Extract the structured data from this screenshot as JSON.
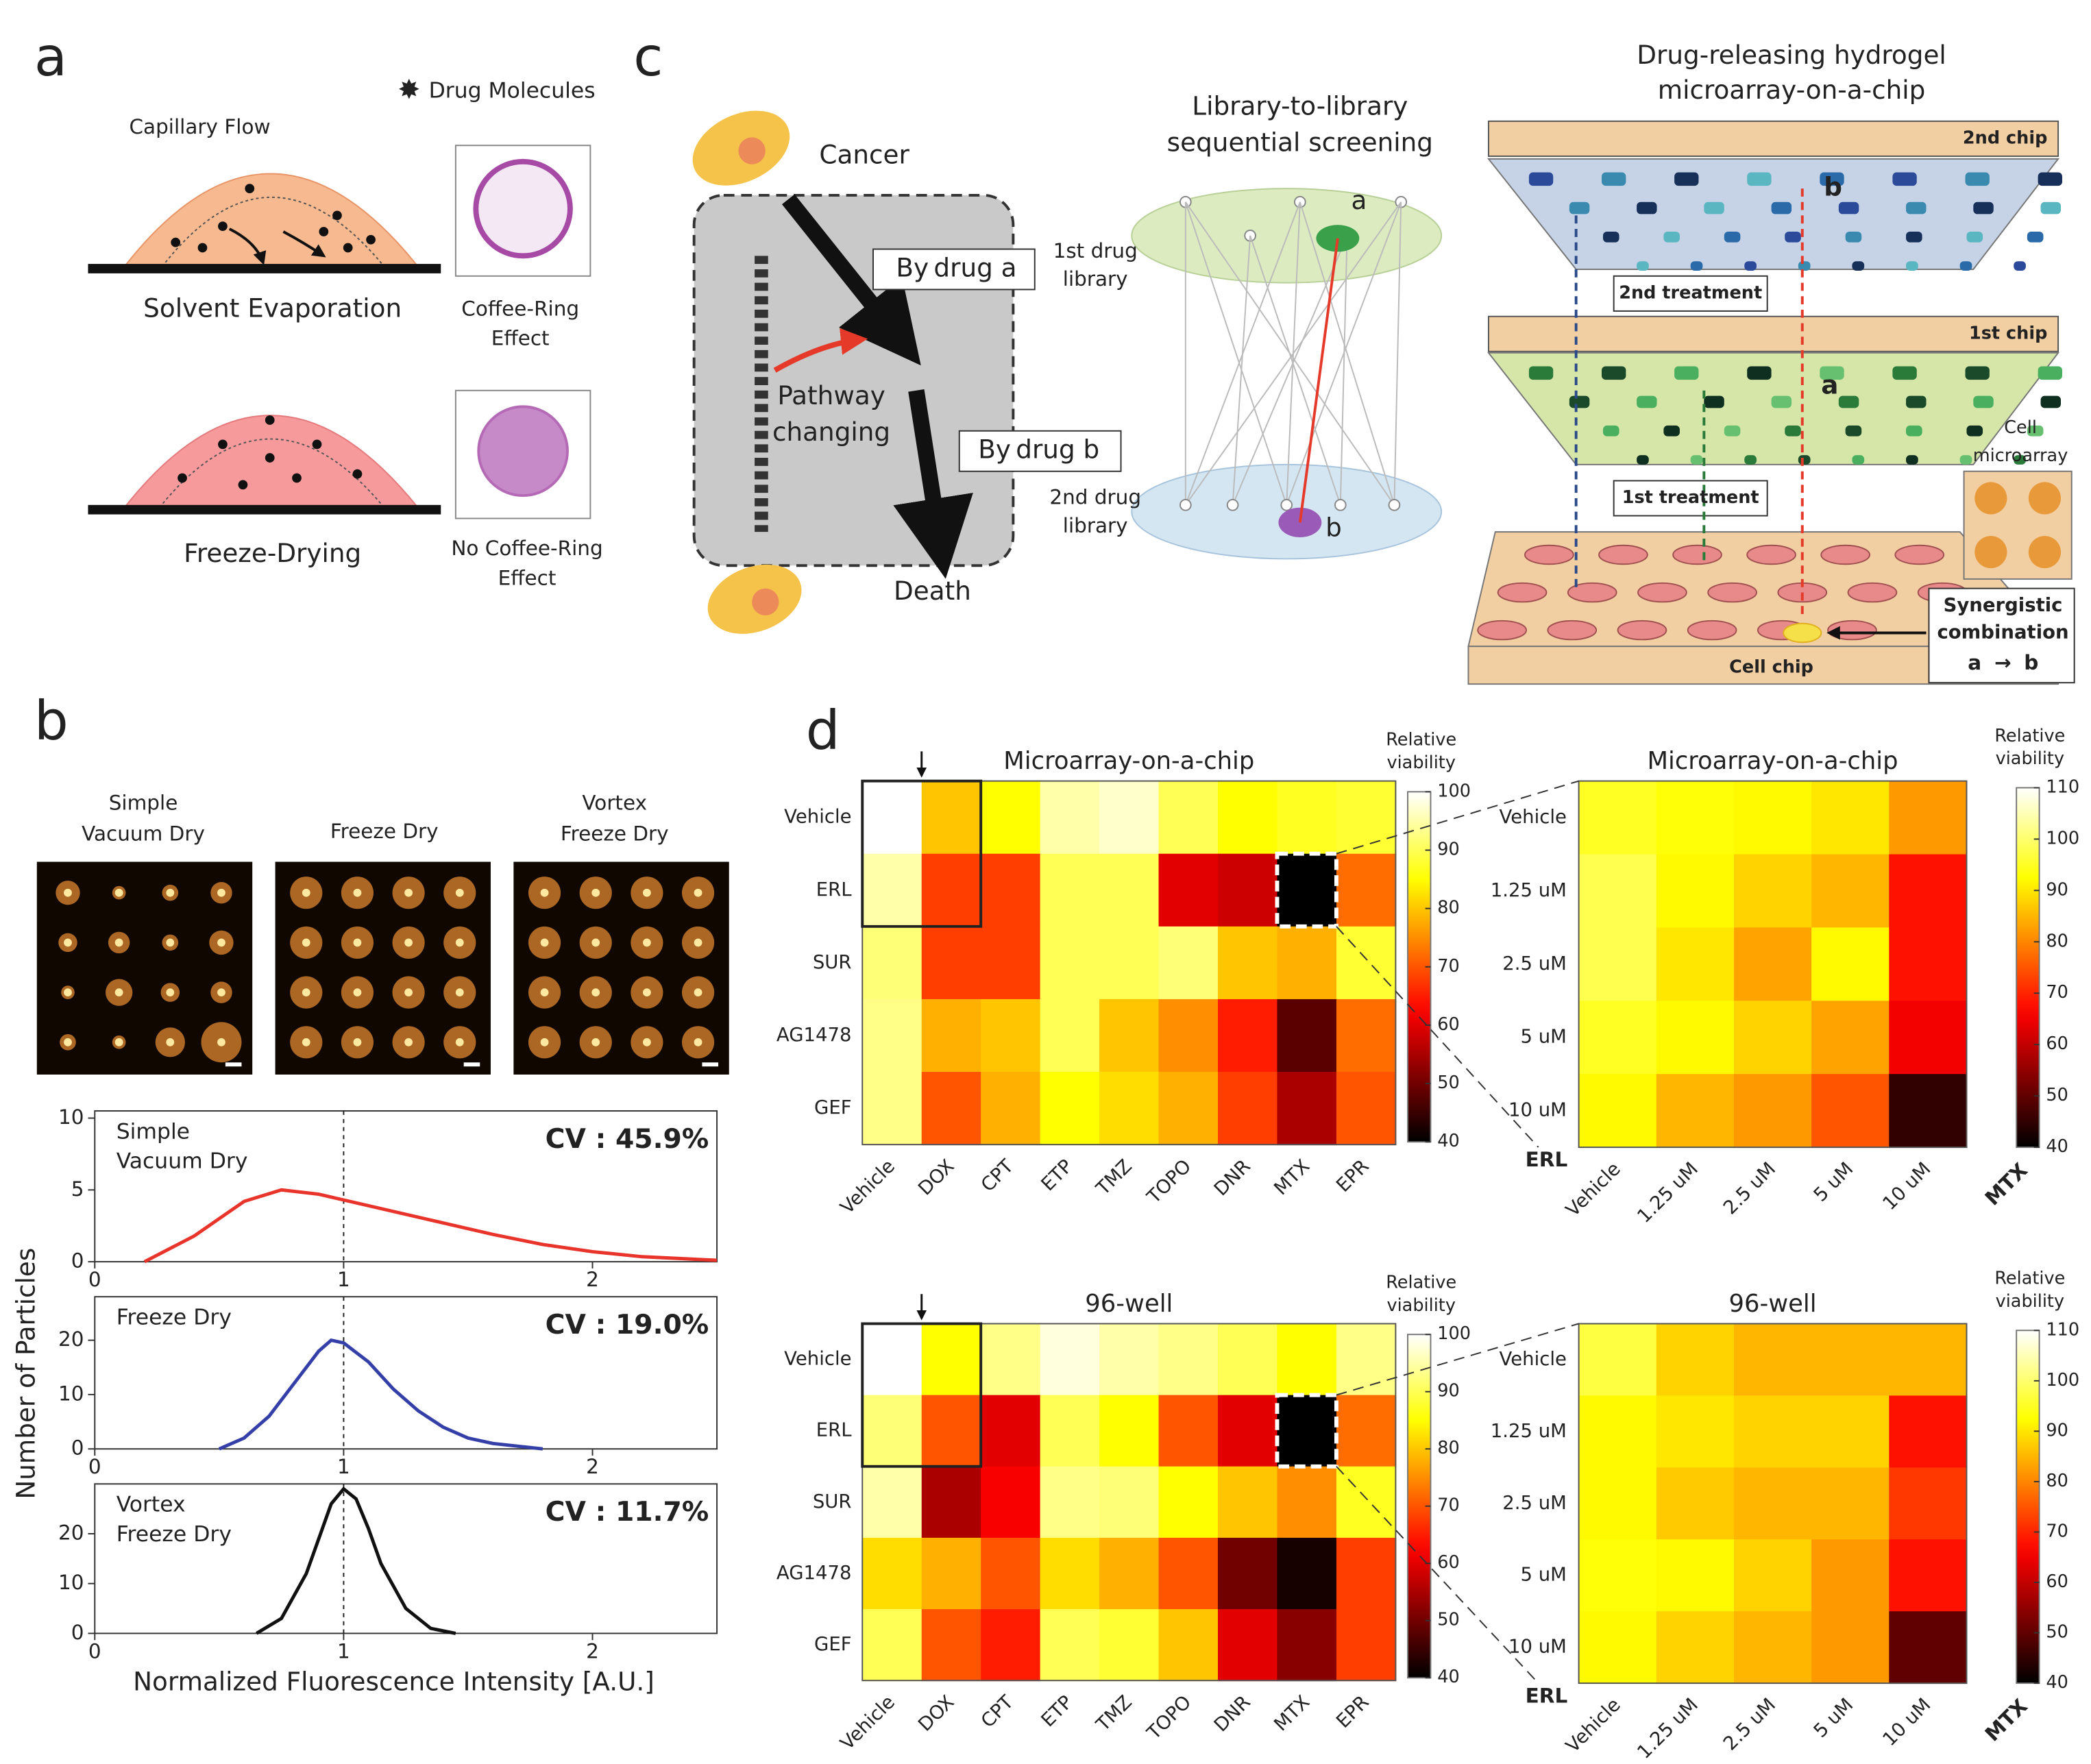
{
  "panel_labels": [
    "a",
    "b",
    "c",
    "d"
  ],
  "panel_a": {
    "legend": "Drug Molecules",
    "capillary": "Capillary Flow",
    "top_caption": "Solvent Evaporation",
    "top_inset_lines": [
      "Coffee-Ring",
      "Effect"
    ],
    "bottom_caption": "Freeze-Drying",
    "bottom_inset_lines": [
      "No Coffee-Ring",
      "Effect"
    ]
  },
  "panel_b": {
    "image_labels": [
      [
        "Simple",
        "Vacuum Dry"
      ],
      [
        "Freeze Dry"
      ],
      [
        "Vortex",
        "Freeze Dry"
      ]
    ],
    "ylabel": "Number of Particles",
    "xlabel": "Normalized Fluorescence Intensity [A.U.]"
  },
  "panel_c": {
    "cancer": "Cancer",
    "by_a": [
      "By",
      "drug a"
    ],
    "pathway_lines": [
      "Pathway",
      "changing"
    ],
    "by_b": [
      "By",
      "drug b"
    ],
    "death": "Death",
    "lib1_lines": [
      "1st drug",
      "library"
    ],
    "lib2_lines": [
      "2nd drug",
      "library"
    ],
    "screen_title_lines": [
      "Library-to-library",
      "sequential screening"
    ],
    "node_a": "a",
    "node_b": "b",
    "chip_title_lines": [
      "Drug-releasing hydrogel",
      "microarray-on-a-chip"
    ],
    "chip2": "2nd chip",
    "treat2": "2nd treatment",
    "chip1": "1st chip",
    "treat1": "1st treatment",
    "cell_chip": "Cell chip",
    "cell_micro_lines": [
      "Cell",
      "microarray"
    ],
    "synergy_lines": [
      "Synergistic",
      "combination"
    ],
    "synergy_seq": [
      "a",
      "→",
      "b"
    ],
    "chip_a": "a",
    "chip_b": "b"
  },
  "chart_data": [
    {
      "type": "line",
      "title_lines": [
        "Simple",
        "Vacuum Dry"
      ],
      "annotation": "CV : 45.9%",
      "x": [
        0.2,
        0.4,
        0.6,
        0.75,
        0.9,
        1.0,
        1.2,
        1.4,
        1.6,
        1.8,
        2.0,
        2.2,
        2.5
      ],
      "series": [
        {
          "color": "#e8342a",
          "values": [
            0,
            1.8,
            4.2,
            5,
            4.7,
            4.3,
            3.5,
            2.7,
            1.9,
            1.2,
            0.7,
            0.35,
            0.1
          ]
        }
      ],
      "xlim": [
        0,
        2.5
      ],
      "xticks": [
        0,
        1,
        2
      ],
      "ylim": [
        0,
        10.5
      ],
      "yticks": [
        0,
        5,
        10
      ],
      "reference_x": 1
    },
    {
      "type": "line",
      "title_lines": [
        "Freeze Dry"
      ],
      "annotation": "CV : 19.0%",
      "x": [
        0.5,
        0.6,
        0.7,
        0.8,
        0.9,
        0.95,
        1.0,
        1.1,
        1.2,
        1.3,
        1.4,
        1.5,
        1.6,
        1.8
      ],
      "series": [
        {
          "color": "#3440a8",
          "values": [
            0,
            2,
            6,
            12,
            18,
            20,
            19.5,
            16,
            11,
            7,
            4,
            2,
            1,
            0
          ]
        }
      ],
      "xlim": [
        0,
        2.5
      ],
      "xticks": [
        0,
        1,
        2
      ],
      "ylim": [
        0,
        28
      ],
      "yticks": [
        0,
        10,
        20
      ],
      "reference_x": 1
    },
    {
      "type": "line",
      "title_lines": [
        "Vortex",
        "Freeze Dry"
      ],
      "annotation": "CV : 11.7%",
      "x": [
        0.65,
        0.75,
        0.85,
        0.9,
        0.95,
        1.0,
        1.05,
        1.1,
        1.15,
        1.25,
        1.35,
        1.45
      ],
      "series": [
        {
          "color": "#111111",
          "values": [
            0,
            3,
            12,
            19,
            26,
            29,
            27,
            21,
            14,
            5,
            1,
            0
          ]
        }
      ],
      "xlim": [
        0,
        2.5
      ],
      "xticks": [
        0,
        1,
        2
      ],
      "ylim": [
        0,
        30
      ],
      "yticks": [
        0,
        10,
        20
      ],
      "reference_x": 1
    },
    {
      "type": "heatmap",
      "title": "Microarray-on-a-chip",
      "rows": [
        "Vehicle",
        "ERL",
        "SUR",
        "AG1478",
        "GEF"
      ],
      "columns": [
        "Vehicle",
        "DOX",
        "CPT",
        "ETP",
        "TMZ",
        "TOPO",
        "DNR",
        "MTX",
        "EPR"
      ],
      "values": [
        [
          100,
          80,
          85,
          95,
          97,
          90,
          85,
          87,
          88
        ],
        [
          95,
          68,
          68,
          90,
          90,
          60,
          58,
          40,
          72
        ],
        [
          92,
          68,
          68,
          90,
          90,
          92,
          80,
          78,
          88
        ],
        [
          93,
          78,
          80,
          90,
          80,
          75,
          65,
          48,
          72
        ],
        [
          93,
          70,
          78,
          85,
          82,
          78,
          68,
          55,
          70
        ]
      ],
      "zlim": [
        40,
        100
      ],
      "zticks": [
        40,
        50,
        60,
        70,
        80,
        90,
        100
      ],
      "colormap": "hot",
      "colorbar_label_lines": [
        "Relative",
        "viability"
      ]
    },
    {
      "type": "heatmap",
      "title": "Microarray-on-a-chip",
      "rows": [
        "Vehicle",
        "1.25 uM",
        "2.5 uM",
        "5 uM",
        "10 uM"
      ],
      "columns": [
        "Vehicle",
        "1.25 uM",
        "2.5 uM",
        "5 uM",
        "10 uM"
      ],
      "values": [
        [
          95,
          93,
          92,
          90,
          82
        ],
        [
          98,
          92,
          88,
          85,
          68
        ],
        [
          98,
          90,
          83,
          92,
          68
        ],
        [
          95,
          92,
          88,
          83,
          65
        ],
        [
          92,
          85,
          82,
          75,
          45
        ]
      ],
      "zlim": [
        40,
        110
      ],
      "zticks": [
        40,
        50,
        60,
        70,
        80,
        90,
        100,
        110
      ],
      "colormap": "hot",
      "colorbar_label_lines": [
        "Relative",
        "viability"
      ],
      "row_axis_label": "ERL",
      "column_axis_label": "MTX"
    },
    {
      "type": "heatmap",
      "title": "96-well",
      "rows": [
        "Vehicle",
        "ERL",
        "SUR",
        "AG1478",
        "GEF"
      ],
      "columns": [
        "Vehicle",
        "DOX",
        "CPT",
        "ETP",
        "TMZ",
        "TOPO",
        "DNR",
        "MTX",
        "EPR"
      ],
      "values": [
        [
          100,
          85,
          93,
          98,
          95,
          93,
          90,
          85,
          93
        ],
        [
          92,
          70,
          60,
          90,
          85,
          70,
          60,
          40,
          72
        ],
        [
          95,
          55,
          62,
          93,
          92,
          85,
          80,
          75,
          87
        ],
        [
          82,
          78,
          70,
          82,
          78,
          70,
          50,
          42,
          68
        ],
        [
          90,
          70,
          65,
          90,
          88,
          80,
          60,
          52,
          68
        ]
      ],
      "zlim": [
        40,
        100
      ],
      "zticks": [
        40,
        50,
        60,
        70,
        80,
        90,
        100
      ],
      "colormap": "hot",
      "colorbar_label_lines": [
        "Relative",
        "viability"
      ]
    },
    {
      "type": "heatmap",
      "title": "96-well",
      "rows": [
        "Vehicle",
        "1.25 uM",
        "2.5 uM",
        "5 uM",
        "10 uM"
      ],
      "columns": [
        "Vehicle",
        "1.25 uM",
        "2.5 uM",
        "5 uM",
        "10 uM"
      ],
      "values": [
        [
          97,
          88,
          85,
          85,
          85
        ],
        [
          92,
          90,
          88,
          88,
          68
        ],
        [
          92,
          87,
          85,
          85,
          72
        ],
        [
          93,
          92,
          88,
          82,
          68
        ],
        [
          92,
          88,
          85,
          82,
          50
        ]
      ],
      "zlim": [
        40,
        110
      ],
      "zticks": [
        40,
        50,
        60,
        70,
        80,
        90,
        100,
        110
      ],
      "colormap": "hot",
      "colorbar_label_lines": [
        "Relative",
        "viability"
      ],
      "row_axis_label": "ERL",
      "column_axis_label": "MTX"
    }
  ]
}
